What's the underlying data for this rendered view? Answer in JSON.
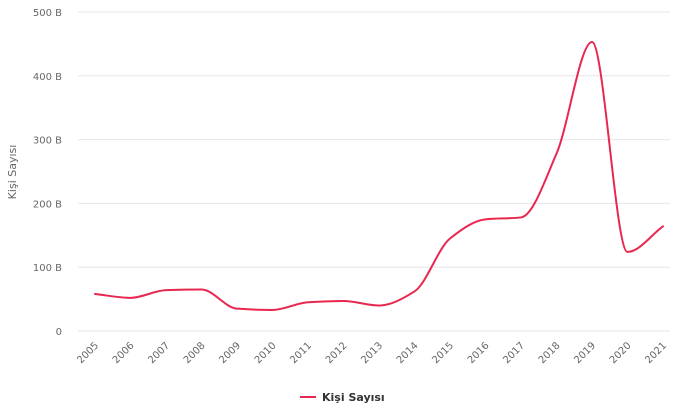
{
  "chart_data": {
    "type": "line",
    "ylabel": "Kişi Sayısı",
    "xlabel": "",
    "ylim": [
      0,
      500
    ],
    "y_ticks": [
      {
        "value": 0,
        "label": "0"
      },
      {
        "value": 100,
        "label": "100 B"
      },
      {
        "value": 200,
        "label": "200 B"
      },
      {
        "value": 300,
        "label": "300 B"
      },
      {
        "value": 400,
        "label": "400 B"
      },
      {
        "value": 500,
        "label": "500 B"
      }
    ],
    "categories": [
      "2005",
      "2006",
      "2007",
      "2008",
      "2009",
      "2010",
      "2011",
      "2012",
      "2013",
      "2014",
      "2015",
      "2016",
      "2017",
      "2018",
      "2019",
      "2020",
      "2021"
    ],
    "series": [
      {
        "name": "Kişi Sayısı",
        "color": "#e8274f",
        "values": [
          58,
          52,
          64,
          65,
          35,
          33,
          45,
          47,
          40,
          62,
          145,
          175,
          178,
          278,
          453,
          124,
          164
        ]
      }
    ],
    "grid": "horizontal",
    "legend": "bottom-center"
  }
}
